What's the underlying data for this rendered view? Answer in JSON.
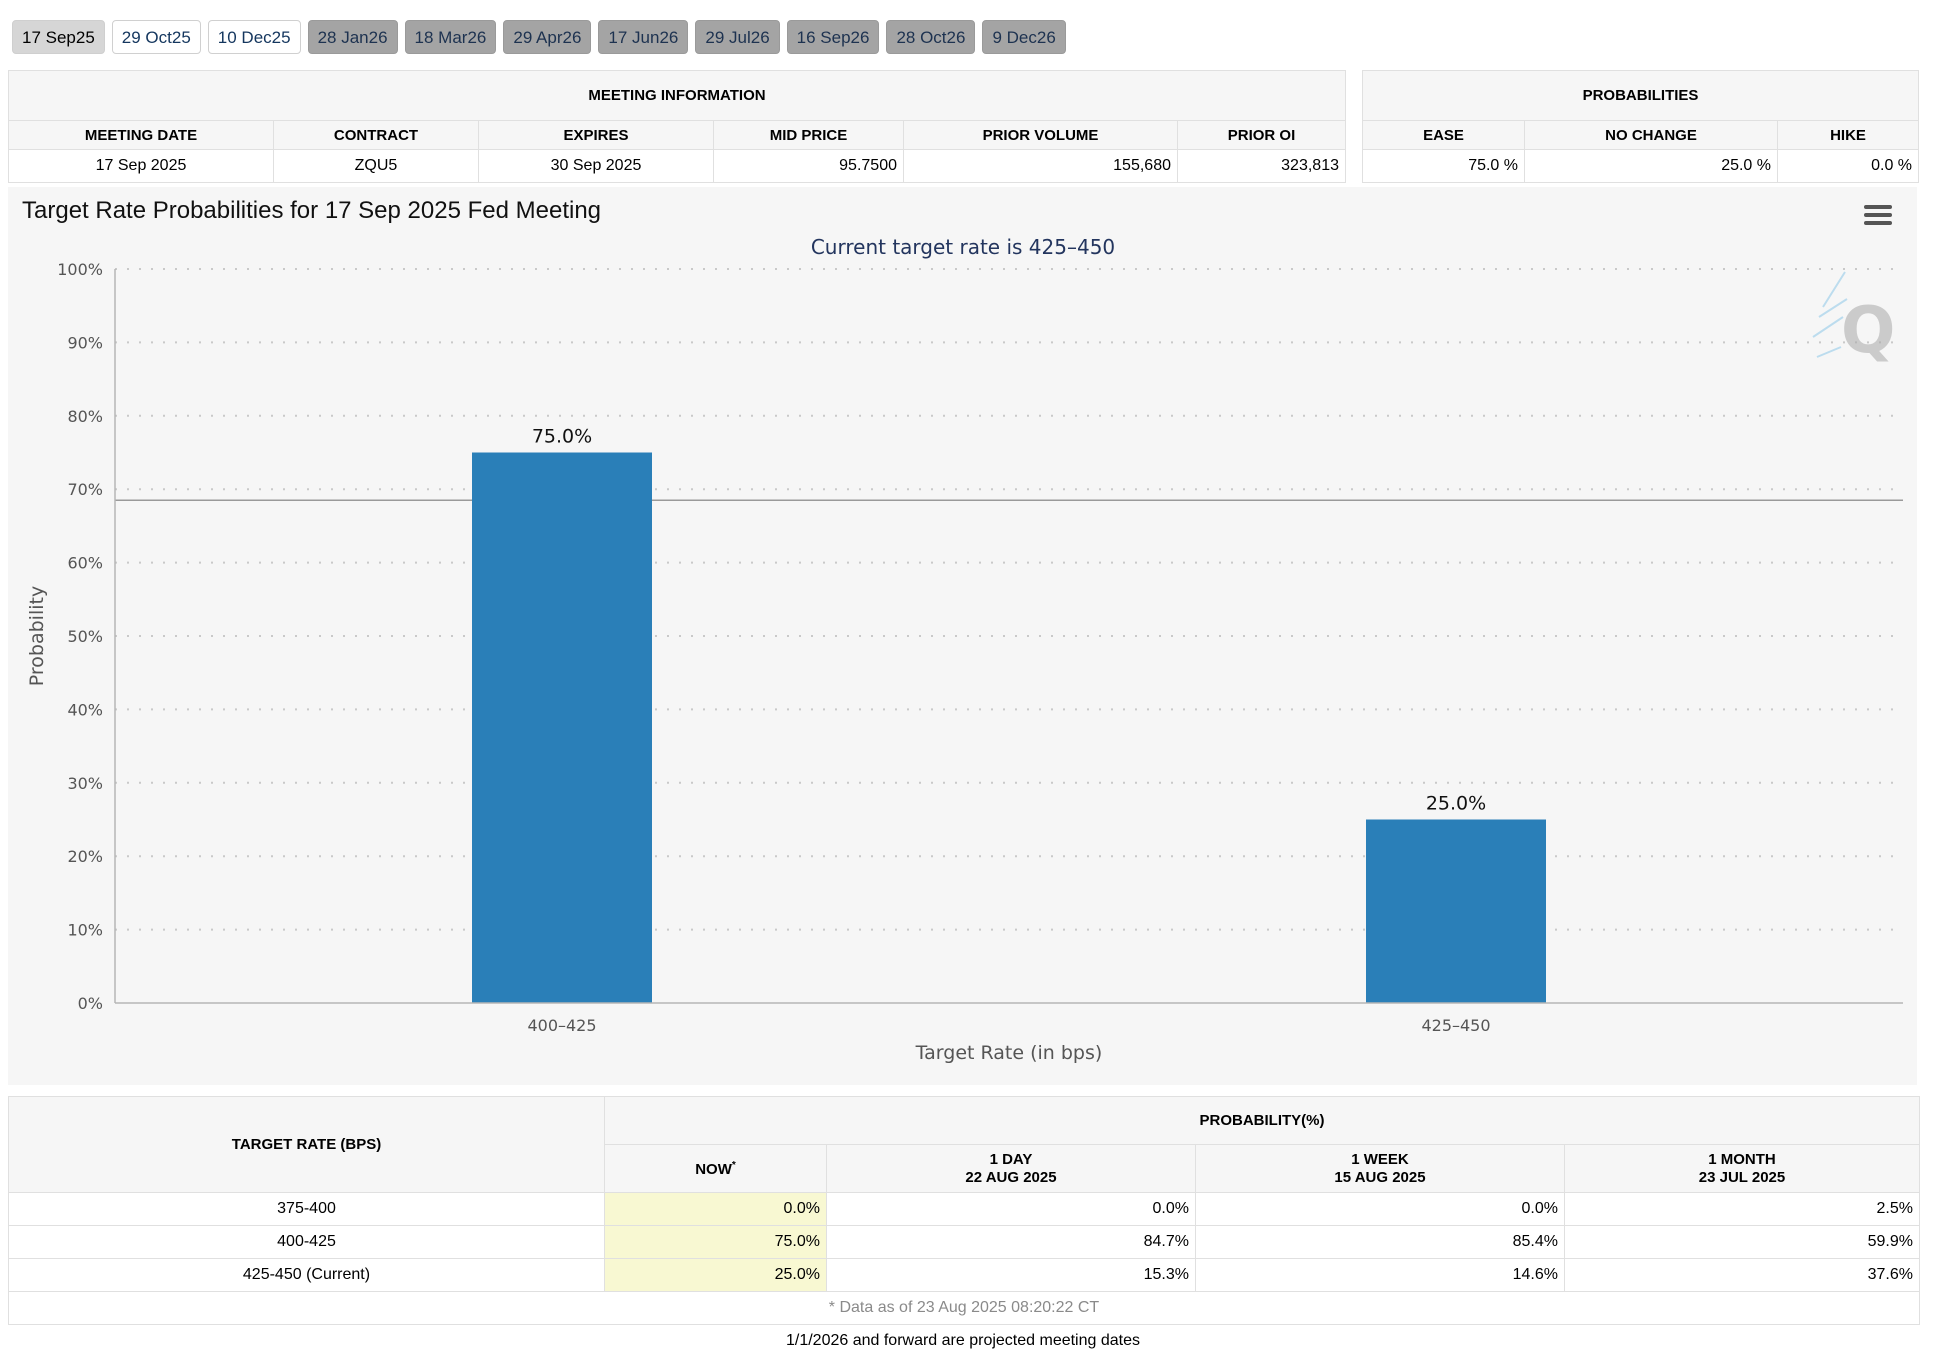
{
  "tabs": [
    {
      "label": "17 Sep25",
      "style": "active"
    },
    {
      "label": "29 Oct25",
      "style": "light"
    },
    {
      "label": "10 Dec25",
      "style": "light"
    },
    {
      "label": "28 Jan26",
      "style": "grey"
    },
    {
      "label": "18 Mar26",
      "style": "grey"
    },
    {
      "label": "29 Apr26",
      "style": "grey"
    },
    {
      "label": "17 Jun26",
      "style": "grey"
    },
    {
      "label": "29 Jul26",
      "style": "grey"
    },
    {
      "label": "16 Sep26",
      "style": "grey"
    },
    {
      "label": "28 Oct26",
      "style": "grey"
    },
    {
      "label": "9 Dec26",
      "style": "grey"
    }
  ],
  "meeting_info": {
    "caption": "MEETING INFORMATION",
    "headers": [
      "MEETING DATE",
      "CONTRACT",
      "EXPIRES",
      "MID PRICE",
      "PRIOR VOLUME",
      "PRIOR OI"
    ],
    "row": [
      "17 Sep 2025",
      "ZQU5",
      "30 Sep 2025",
      "95.7500",
      "155,680",
      "323,813"
    ]
  },
  "probabilities": {
    "caption": "PROBABILITIES",
    "headers": [
      "EASE",
      "NO CHANGE",
      "HIKE"
    ],
    "row": [
      "75.0 %",
      "25.0 %",
      "0.0 %"
    ]
  },
  "chart_menu_icon": "hamburger-menu-icon",
  "chart_data": {
    "type": "bar",
    "title": "Target Rate Probabilities for 17 Sep 2025 Fed Meeting",
    "subtitle": "Current target rate is 425–450",
    "xlabel": "Target Rate (in bps)",
    "ylabel": "Probability",
    "categories": [
      "400–425",
      "425–450"
    ],
    "values": [
      75.0,
      25.0
    ],
    "data_labels": [
      "75.0%",
      "25.0%"
    ],
    "ylim": [
      0,
      100
    ],
    "yticks": [
      "0%",
      "10%",
      "20%",
      "30%",
      "40%",
      "50%",
      "60%",
      "70%",
      "80%",
      "90%",
      "100%"
    ],
    "grid": true,
    "bar_color": "#2a7fb8",
    "reference_line_value": 68.5
  },
  "history": {
    "rate_header": "TARGET RATE (BPS)",
    "prob_header": "PROBABILITY(%)",
    "now_label": "NOW",
    "now_marker": "*",
    "columns": [
      {
        "line1": "1 DAY",
        "line2": "22 AUG 2025"
      },
      {
        "line1": "1 WEEK",
        "line2": "15 AUG 2025"
      },
      {
        "line1": "1 MONTH",
        "line2": "23 JUL 2025"
      }
    ],
    "rows": [
      {
        "rate": "375-400",
        "now": "0.0%",
        "d1": "0.0%",
        "w1": "0.0%",
        "m1": "2.5%"
      },
      {
        "rate": "400-425",
        "now": "75.0%",
        "d1": "84.7%",
        "w1": "85.4%",
        "m1": "59.9%"
      },
      {
        "rate": "425-450 (Current)",
        "now": "25.0%",
        "d1": "15.3%",
        "w1": "14.6%",
        "m1": "37.6%"
      }
    ],
    "data_note": "* Data as of 23 Aug 2025 08:20:22 CT"
  },
  "footer_note": "1/1/2026 and forward are projected meeting dates"
}
